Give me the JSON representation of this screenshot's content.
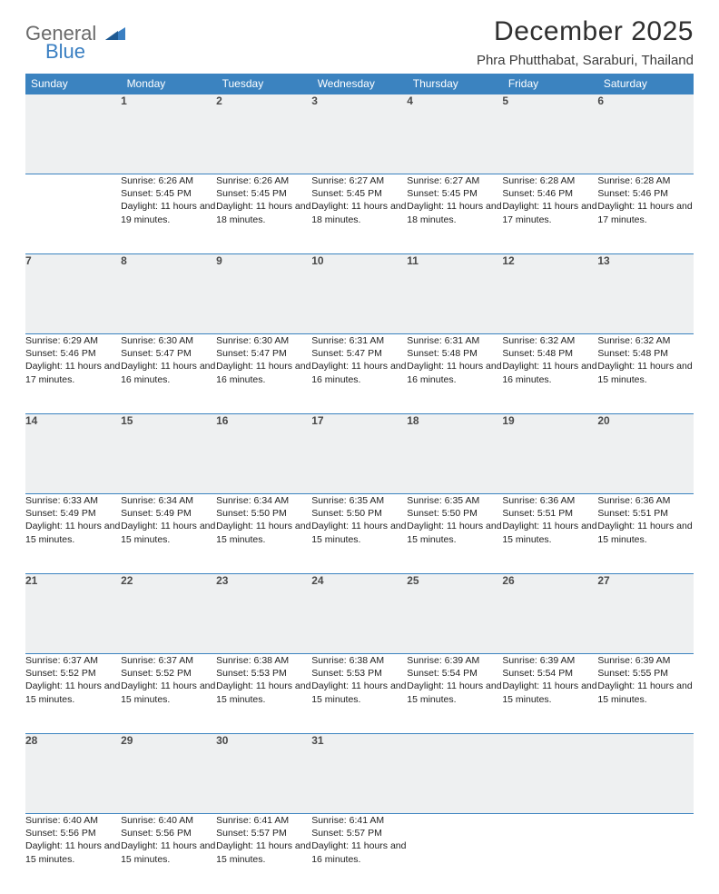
{
  "brand": {
    "word1": "General",
    "word2": "Blue"
  },
  "title": "December 2025",
  "subtitle": "Phra Phutthabat, Saraburi, Thailand",
  "colors": {
    "header_bg": "#3b83c0",
    "header_text": "#ffffff",
    "daynum_bg": "#eef0f1",
    "rule": "#3b83c0",
    "logo_grey": "#6b6b6b",
    "logo_blue": "#3a7fc2"
  },
  "weekdays": [
    "Sunday",
    "Monday",
    "Tuesday",
    "Wednesday",
    "Thursday",
    "Friday",
    "Saturday"
  ],
  "weeks": [
    [
      null,
      {
        "n": "1",
        "sr": "6:26 AM",
        "ss": "5:45 PM",
        "dl": "11 hours and 19 minutes."
      },
      {
        "n": "2",
        "sr": "6:26 AM",
        "ss": "5:45 PM",
        "dl": "11 hours and 18 minutes."
      },
      {
        "n": "3",
        "sr": "6:27 AM",
        "ss": "5:45 PM",
        "dl": "11 hours and 18 minutes."
      },
      {
        "n": "4",
        "sr": "6:27 AM",
        "ss": "5:45 PM",
        "dl": "11 hours and 18 minutes."
      },
      {
        "n": "5",
        "sr": "6:28 AM",
        "ss": "5:46 PM",
        "dl": "11 hours and 17 minutes."
      },
      {
        "n": "6",
        "sr": "6:28 AM",
        "ss": "5:46 PM",
        "dl": "11 hours and 17 minutes."
      }
    ],
    [
      {
        "n": "7",
        "sr": "6:29 AM",
        "ss": "5:46 PM",
        "dl": "11 hours and 17 minutes."
      },
      {
        "n": "8",
        "sr": "6:30 AM",
        "ss": "5:47 PM",
        "dl": "11 hours and 16 minutes."
      },
      {
        "n": "9",
        "sr": "6:30 AM",
        "ss": "5:47 PM",
        "dl": "11 hours and 16 minutes."
      },
      {
        "n": "10",
        "sr": "6:31 AM",
        "ss": "5:47 PM",
        "dl": "11 hours and 16 minutes."
      },
      {
        "n": "11",
        "sr": "6:31 AM",
        "ss": "5:48 PM",
        "dl": "11 hours and 16 minutes."
      },
      {
        "n": "12",
        "sr": "6:32 AM",
        "ss": "5:48 PM",
        "dl": "11 hours and 16 minutes."
      },
      {
        "n": "13",
        "sr": "6:32 AM",
        "ss": "5:48 PM",
        "dl": "11 hours and 15 minutes."
      }
    ],
    [
      {
        "n": "14",
        "sr": "6:33 AM",
        "ss": "5:49 PM",
        "dl": "11 hours and 15 minutes."
      },
      {
        "n": "15",
        "sr": "6:34 AM",
        "ss": "5:49 PM",
        "dl": "11 hours and 15 minutes."
      },
      {
        "n": "16",
        "sr": "6:34 AM",
        "ss": "5:50 PM",
        "dl": "11 hours and 15 minutes."
      },
      {
        "n": "17",
        "sr": "6:35 AM",
        "ss": "5:50 PM",
        "dl": "11 hours and 15 minutes."
      },
      {
        "n": "18",
        "sr": "6:35 AM",
        "ss": "5:50 PM",
        "dl": "11 hours and 15 minutes."
      },
      {
        "n": "19",
        "sr": "6:36 AM",
        "ss": "5:51 PM",
        "dl": "11 hours and 15 minutes."
      },
      {
        "n": "20",
        "sr": "6:36 AM",
        "ss": "5:51 PM",
        "dl": "11 hours and 15 minutes."
      }
    ],
    [
      {
        "n": "21",
        "sr": "6:37 AM",
        "ss": "5:52 PM",
        "dl": "11 hours and 15 minutes."
      },
      {
        "n": "22",
        "sr": "6:37 AM",
        "ss": "5:52 PM",
        "dl": "11 hours and 15 minutes."
      },
      {
        "n": "23",
        "sr": "6:38 AM",
        "ss": "5:53 PM",
        "dl": "11 hours and 15 minutes."
      },
      {
        "n": "24",
        "sr": "6:38 AM",
        "ss": "5:53 PM",
        "dl": "11 hours and 15 minutes."
      },
      {
        "n": "25",
        "sr": "6:39 AM",
        "ss": "5:54 PM",
        "dl": "11 hours and 15 minutes."
      },
      {
        "n": "26",
        "sr": "6:39 AM",
        "ss": "5:54 PM",
        "dl": "11 hours and 15 minutes."
      },
      {
        "n": "27",
        "sr": "6:39 AM",
        "ss": "5:55 PM",
        "dl": "11 hours and 15 minutes."
      }
    ],
    [
      {
        "n": "28",
        "sr": "6:40 AM",
        "ss": "5:56 PM",
        "dl": "11 hours and 15 minutes."
      },
      {
        "n": "29",
        "sr": "6:40 AM",
        "ss": "5:56 PM",
        "dl": "11 hours and 15 minutes."
      },
      {
        "n": "30",
        "sr": "6:41 AM",
        "ss": "5:57 PM",
        "dl": "11 hours and 15 minutes."
      },
      {
        "n": "31",
        "sr": "6:41 AM",
        "ss": "5:57 PM",
        "dl": "11 hours and 16 minutes."
      },
      null,
      null,
      null
    ]
  ],
  "labels": {
    "sunrise": "Sunrise: ",
    "sunset": "Sunset: ",
    "daylight": "Daylight: "
  }
}
